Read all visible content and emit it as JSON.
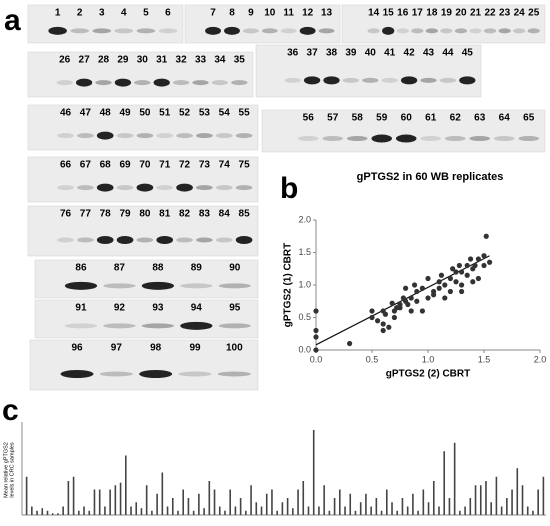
{
  "blots": {
    "label": "a",
    "strips": [
      {
        "lanes": [
          1,
          2,
          3,
          4,
          5,
          6
        ]
      },
      {
        "lanes": [
          7,
          8,
          9,
          10,
          11,
          12,
          13
        ]
      },
      {
        "lanes": [
          14,
          15,
          16,
          17,
          18,
          19,
          20,
          21,
          22,
          23,
          24,
          25
        ]
      },
      {
        "lanes": [
          26,
          27,
          28,
          29,
          30,
          31,
          32,
          33,
          34,
          35
        ]
      },
      {
        "lanes": [
          36,
          37,
          38,
          39,
          40,
          41,
          42,
          43,
          44,
          45
        ]
      },
      {
        "lanes": [
          46,
          47,
          48,
          49,
          50,
          51,
          52,
          53,
          54,
          55
        ]
      },
      {
        "lanes": [
          56,
          57,
          58,
          59,
          60,
          61,
          62,
          63,
          64,
          65
        ]
      },
      {
        "lanes": [
          66,
          67,
          68,
          69,
          70,
          71,
          72,
          73,
          74,
          75
        ]
      },
      {
        "lanes": [
          76,
          77,
          78,
          79,
          80,
          81,
          82,
          83,
          84,
          85
        ]
      },
      {
        "lanes": [
          86,
          87,
          88,
          89,
          90
        ]
      },
      {
        "lanes": [
          91,
          92,
          93,
          94,
          95
        ]
      },
      {
        "lanes": [
          96,
          97,
          98,
          99,
          100
        ]
      }
    ]
  },
  "chart_data": [
    {
      "type": "scatter",
      "label": "b",
      "title": "gPTGS2 in 60 WB replicates",
      "x_label": "gPTGS2 (2) CBRT",
      "y_label": "gPTGS2 (1) CBRT",
      "color": "#333333",
      "x": [
        0,
        0,
        0,
        0,
        0.3,
        0.5,
        0.5,
        0.55,
        0.6,
        0.6,
        0.6,
        0.65,
        0.7,
        0.7,
        0.75,
        0.75,
        0.8,
        0.8,
        0.82,
        0.85,
        0.85,
        0.9,
        0.9,
        0.95,
        0.95,
        1.0,
        1.0,
        1.05,
        1.05,
        1.1,
        1.1,
        1.15,
        1.15,
        1.2,
        1.2,
        1.25,
        1.25,
        1.3,
        1.3,
        1.3,
        1.35,
        1.35,
        1.4,
        1.4,
        1.42,
        1.45,
        1.45,
        1.5,
        1.5,
        1.52,
        1.55,
        0.68,
        0.72,
        0.88,
        1.12,
        1.22,
        1.28,
        1.38,
        0.62,
        0.78
      ],
      "values": [
        0.6,
        0.3,
        0.2,
        0.0,
        0.1,
        0.6,
        0.5,
        0.45,
        0.4,
        0.3,
        0.6,
        0.35,
        0.6,
        0.5,
        0.65,
        0.7,
        0.75,
        0.95,
        0.7,
        0.8,
        0.6,
        0.75,
        0.9,
        0.95,
        0.6,
        0.8,
        1.1,
        0.9,
        0.85,
        0.95,
        1.05,
        1.0,
        0.8,
        1.1,
        0.9,
        1.2,
        1.05,
        1.2,
        1.0,
        0.9,
        1.3,
        1.15,
        1.25,
        1.05,
        1.3,
        1.4,
        1.1,
        1.45,
        1.3,
        1.75,
        1.35,
        0.72,
        0.65,
        1.0,
        1.15,
        1.25,
        1.3,
        1.4,
        0.55,
        0.8
      ],
      "trendline": {
        "x": [
          0,
          1.55
        ],
        "y": [
          0.08,
          1.45
        ]
      },
      "xlim": [
        0,
        2
      ],
      "ylim": [
        0,
        2
      ],
      "xticks": [
        {
          "value": 0,
          "label": "0.0"
        },
        {
          "value": 0.5,
          "label": "0.5"
        },
        {
          "value": 1,
          "label": "1.0"
        },
        {
          "value": 1.5,
          "label": "1.5"
        },
        {
          "value": 2,
          "label": "2.0"
        }
      ],
      "yticks": [
        {
          "value": 0,
          "label": "0.0"
        },
        {
          "value": 0.5,
          "label": "0.5"
        },
        {
          "value": 1,
          "label": "1.0"
        },
        {
          "value": 1.5,
          "label": "1.5"
        },
        {
          "value": 2,
          "label": "2.0"
        }
      ]
    },
    {
      "type": "bar",
      "label": "c",
      "y_label": [
        "Mean relative gPTGS2",
        "levels in CRC samples"
      ],
      "color": "#444444",
      "ylim": [
        0,
        1
      ],
      "values": [
        0.45,
        0.1,
        0.05,
        0.08,
        0.05,
        0.02,
        0.02,
        0.1,
        0.4,
        0.45,
        0.05,
        0.1,
        0.05,
        0.3,
        0.3,
        0.1,
        0.3,
        0.35,
        0.38,
        0.7,
        0.1,
        0.15,
        0.08,
        0.35,
        0.05,
        0.25,
        0.5,
        0.1,
        0.2,
        0.05,
        0.3,
        0.2,
        0.05,
        0.25,
        0.08,
        0.4,
        0.3,
        0.1,
        0.05,
        0.3,
        0.1,
        0.2,
        0.05,
        0.35,
        0.15,
        0.1,
        0.25,
        0.3,
        0.05,
        0.15,
        0.2,
        0.08,
        0.3,
        0.4,
        0.1,
        1.0,
        0.1,
        0.35,
        0.05,
        0.2,
        0.3,
        0.1,
        0.25,
        0.05,
        0.15,
        0.25,
        0.1,
        0.2,
        0.05,
        0.3,
        0.15,
        0.05,
        0.2,
        0.1,
        0.25,
        0.05,
        0.3,
        0.15,
        0.4,
        0.1,
        0.75,
        0.2,
        0.85,
        0.05,
        0.1,
        0.2,
        0.35,
        0.35,
        0.4,
        0.15,
        0.45,
        0.1,
        0.2,
        0.3,
        0.55,
        0.35,
        0.1,
        0.05,
        0.3,
        0.45
      ]
    }
  ]
}
